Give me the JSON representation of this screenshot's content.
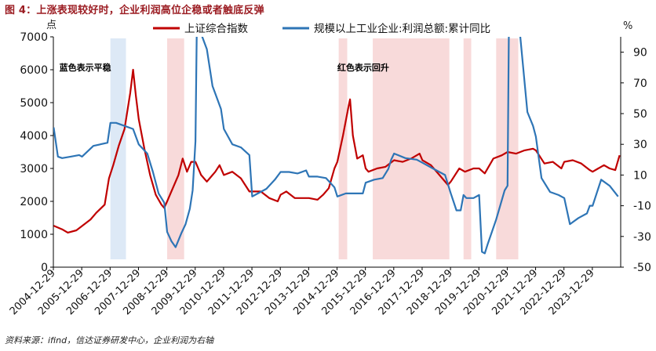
{
  "figure": {
    "title": "图 4：上涨表现较好时，企业利润高位企稳或者触底反弹",
    "source": "资料来源：ifind，信达证券研发中心，企业利润为右轴"
  },
  "chart_data": {
    "type": "line",
    "title": "",
    "ylabel_left": "点",
    "ylabel_right": "%",
    "ylim_left": [
      0,
      7000
    ],
    "yticks_left": [
      0,
      1000,
      2000,
      3000,
      4000,
      5000,
      6000,
      7000
    ],
    "ylim_right": [
      -50,
      100
    ],
    "yticks_right": [
      -50,
      -30,
      -10,
      10,
      30,
      50,
      70,
      90
    ],
    "xlim": [
      2004.99,
      2024.99
    ],
    "xtick_labels": [
      "2004-12-29",
      "2005-12-29",
      "2006-12-29",
      "2007-12-29",
      "2008-12-29",
      "2009-12-29",
      "2010-12-29",
      "2011-12-29",
      "2012-12-29",
      "2013-12-29",
      "2014-12-29",
      "2015-12-29",
      "2016-12-29",
      "2017-12-29",
      "2018-12-29",
      "2019-12-29",
      "2020-12-29",
      "2021-12-29",
      "2022-12-29",
      "2023-12-29"
    ],
    "legend": {
      "position": "top",
      "entries": [
        "上证综合指数",
        "规模以上工业企业:利润总额:累计同比"
      ]
    },
    "annotations": [
      {
        "text": "蓝色表示平稳",
        "x": 2005.2,
        "y": 6100
      },
      {
        "text": "红色表示回升",
        "x": 2015.0,
        "y": 6100
      }
    ],
    "shaded_regions": [
      {
        "start": 2007.0,
        "end": 2007.55,
        "color": "blue"
      },
      {
        "start": 2009.0,
        "end": 2009.6,
        "color": "red"
      },
      {
        "start": 2015.05,
        "end": 2015.35,
        "color": "red"
      },
      {
        "start": 2016.25,
        "end": 2018.95,
        "color": "red"
      },
      {
        "start": 2019.45,
        "end": 2019.72,
        "color": "red"
      },
      {
        "start": 2020.6,
        "end": 2021.38,
        "color": "red"
      }
    ],
    "series": [
      {
        "name": "上证综合指数",
        "axis": "left",
        "color": "#c00000",
        "x": [
          2005.0,
          2005.3,
          2005.5,
          2005.8,
          2006.0,
          2006.3,
          2006.5,
          2006.8,
          2006.95,
          2007.1,
          2007.3,
          2007.5,
          2007.7,
          2007.8,
          2007.9,
          2008.0,
          2008.2,
          2008.4,
          2008.6,
          2008.8,
          2008.9,
          2009.0,
          2009.2,
          2009.4,
          2009.55,
          2009.7,
          2009.85,
          2010.0,
          2010.2,
          2010.4,
          2010.5,
          2010.7,
          2010.85,
          2011.0,
          2011.3,
          2011.6,
          2011.9,
          2012.0,
          2012.3,
          2012.6,
          2012.9,
          2013.0,
          2013.2,
          2013.5,
          2013.8,
          2014.0,
          2014.3,
          2014.5,
          2014.7,
          2014.9,
          2015.0,
          2015.2,
          2015.4,
          2015.45,
          2015.55,
          2015.7,
          2015.9,
          2016.0,
          2016.1,
          2016.4,
          2016.7,
          2017.0,
          2017.3,
          2017.6,
          2017.9,
          2018.0,
          2018.3,
          2018.6,
          2018.9,
          2019.0,
          2019.3,
          2019.5,
          2019.8,
          2020.0,
          2020.2,
          2020.5,
          2020.8,
          2021.0,
          2021.3,
          2021.6,
          2021.9,
          2022.0,
          2022.3,
          2022.6,
          2022.9,
          2023.0,
          2023.3,
          2023.6,
          2023.9,
          2024.0,
          2024.2,
          2024.4,
          2024.6,
          2024.8,
          2024.95
        ],
        "values": [
          1260,
          1150,
          1050,
          1120,
          1250,
          1450,
          1650,
          1900,
          2700,
          3100,
          3700,
          4200,
          5300,
          6000,
          5200,
          4500,
          3600,
          2800,
          2200,
          1900,
          1800,
          2000,
          2400,
          2800,
          3300,
          2900,
          3200,
          3200,
          2800,
          2600,
          2700,
          2900,
          3100,
          2800,
          2900,
          2700,
          2300,
          2300,
          2300,
          2100,
          2000,
          2200,
          2300,
          2100,
          2100,
          2100,
          2050,
          2200,
          2400,
          3000,
          3200,
          4000,
          4900,
          5100,
          4000,
          3300,
          3400,
          3000,
          2900,
          3000,
          3050,
          3250,
          3200,
          3300,
          3450,
          3250,
          3100,
          2800,
          2500,
          2600,
          3000,
          2900,
          3000,
          3000,
          2850,
          3300,
          3400,
          3500,
          3450,
          3550,
          3600,
          3550,
          3150,
          3200,
          3000,
          3200,
          3250,
          3150,
          2950,
          2900,
          3000,
          3100,
          3000,
          2950,
          3400
        ]
      },
      {
        "name": "规模以上工业企业:利润总额:累计同比",
        "axis": "right",
        "color": "#2e75b6",
        "x": [
          2005.0,
          2005.15,
          2005.3,
          2005.6,
          2005.9,
          2006.0,
          2006.4,
          2006.9,
          2007.0,
          2007.2,
          2007.5,
          2007.8,
          2008.0,
          2008.3,
          2008.5,
          2008.7,
          2008.9,
          2009.0,
          2009.15,
          2009.3,
          2009.5,
          2009.65,
          2009.8,
          2009.9,
          2010.0,
          2010.05,
          2010.2,
          2010.4,
          2010.6,
          2010.9,
          2011.0,
          2011.3,
          2011.6,
          2011.9,
          2012.0,
          2012.2,
          2012.5,
          2012.8,
          2013.0,
          2013.3,
          2013.6,
          2013.9,
          2014.0,
          2014.3,
          2014.6,
          2014.9,
          2015.0,
          2015.3,
          2015.6,
          2015.9,
          2016.0,
          2016.3,
          2016.6,
          2016.8,
          2016.9,
          2017.0,
          2017.4,
          2017.8,
          2018.0,
          2018.4,
          2018.8,
          2019.0,
          2019.2,
          2019.35,
          2019.45,
          2019.55,
          2019.8,
          2020.0,
          2020.1,
          2020.2,
          2020.3,
          2020.6,
          2020.9,
          2021.0,
          2021.05,
          2021.15,
          2021.4,
          2021.7,
          2021.9,
          2022.0,
          2022.2,
          2022.5,
          2022.8,
          2023.0,
          2023.2,
          2023.5,
          2023.8,
          2023.9,
          2024.0,
          2024.3,
          2024.6,
          2024.9
        ],
        "values": [
          41,
          22,
          21,
          22,
          23,
          22,
          29,
          31,
          44,
          44,
          42,
          40,
          30,
          24,
          12,
          -2,
          -8,
          -27,
          -33,
          -37,
          -28,
          -22,
          -12,
          0,
          32,
          110,
          102,
          92,
          68,
          53,
          40,
          30,
          28,
          23,
          -4,
          -2,
          1,
          7,
          12,
          12,
          11,
          13,
          9,
          9,
          8,
          2,
          -4,
          -2,
          -2,
          -2,
          5,
          7,
          8,
          14,
          20,
          24,
          21,
          20,
          18,
          14,
          10,
          -2,
          -13,
          -13,
          -3,
          -5,
          -5,
          -3,
          -40,
          -41,
          -35,
          -19,
          0,
          3,
          110,
          150,
          110,
          51,
          42,
          35,
          8,
          -1,
          -3,
          -5,
          -22,
          -18,
          -15,
          -10,
          -10,
          7,
          3,
          -4
        ]
      }
    ]
  }
}
